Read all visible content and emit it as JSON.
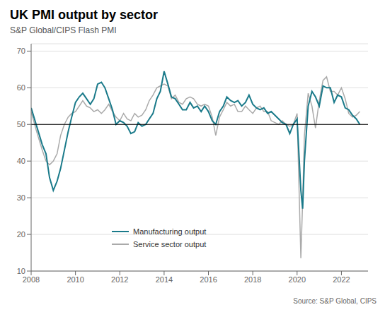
{
  "chart_data": {
    "type": "line",
    "title": "UK PMI output by sector",
    "subtitle": "S&P Global/CIPS Flash PMI",
    "annotations": [
      "Source: S&P Global, CIPS"
    ],
    "xlim": [
      2008.0,
      2023.2
    ],
    "xticks": [
      2008,
      2010,
      2012,
      2014,
      2016,
      2018,
      2020,
      2022
    ],
    "ylim": [
      10,
      72
    ],
    "yticks": [
      10,
      20,
      30,
      40,
      50,
      60,
      70
    ],
    "grid": "y",
    "legend": "lower left",
    "threshold": 50,
    "x": [
      2008.0,
      2008.25,
      2008.5,
      2008.67,
      2008.83,
      2009.0,
      2009.17,
      2009.33,
      2009.5,
      2009.67,
      2009.83,
      2010.0,
      2010.17,
      2010.33,
      2010.5,
      2010.67,
      2010.83,
      2011.0,
      2011.17,
      2011.33,
      2011.5,
      2011.67,
      2011.83,
      2012.0,
      2012.17,
      2012.33,
      2012.5,
      2012.67,
      2012.83,
      2013.0,
      2013.17,
      2013.33,
      2013.5,
      2013.67,
      2013.83,
      2014.0,
      2014.17,
      2014.33,
      2014.5,
      2014.67,
      2014.83,
      2015.0,
      2015.17,
      2015.33,
      2015.5,
      2015.67,
      2015.83,
      2016.0,
      2016.17,
      2016.33,
      2016.5,
      2016.67,
      2016.83,
      2017.0,
      2017.17,
      2017.33,
      2017.5,
      2017.67,
      2017.83,
      2018.0,
      2018.17,
      2018.33,
      2018.5,
      2018.67,
      2018.83,
      2019.0,
      2019.17,
      2019.33,
      2019.5,
      2019.67,
      2019.83,
      2020.0,
      2020.17,
      2020.25,
      2020.33,
      2020.5,
      2020.67,
      2020.83,
      2021.0,
      2021.17,
      2021.33,
      2021.5,
      2021.67,
      2021.83,
      2022.0,
      2022.17,
      2022.33,
      2022.5,
      2022.67,
      2022.83
    ],
    "series": [
      {
        "name": "Manufacturing output",
        "color": "#1a7a8a",
        "values": [
          54.5,
          49.5,
          44.5,
          42.0,
          35.5,
          32.0,
          34.5,
          38.0,
          43.0,
          48.0,
          52.0,
          56.0,
          57.5,
          58.5,
          57.0,
          55.5,
          57.0,
          61.0,
          61.5,
          60.0,
          57.0,
          54.0,
          50.0,
          51.0,
          50.5,
          49.5,
          47.5,
          48.0,
          50.5,
          49.5,
          50.0,
          51.5,
          53.0,
          57.0,
          59.0,
          64.5,
          61.0,
          57.5,
          57.0,
          55.5,
          54.0,
          54.0,
          56.0,
          54.5,
          55.0,
          53.5,
          55.0,
          53.5,
          51.0,
          50.0,
          53.5,
          55.0,
          57.5,
          56.5,
          56.0,
          56.5,
          55.0,
          56.0,
          58.0,
          55.5,
          54.5,
          54.0,
          54.5,
          53.0,
          53.5,
          52.5,
          51.5,
          50.5,
          50.0,
          47.5,
          50.0,
          51.5,
          32.0,
          27.0,
          40.0,
          55.0,
          59.0,
          57.5,
          55.0,
          60.5,
          60.0,
          60.0,
          56.0,
          58.0,
          57.5,
          54.5,
          54.0,
          52.5,
          51.5,
          50.0
        ]
      },
      {
        "name": "Service sector output",
        "color": "#aaaaaa",
        "values": [
          53.5,
          48.0,
          43.0,
          40.0,
          39.0,
          40.0,
          42.0,
          47.0,
          50.0,
          52.0,
          53.0,
          53.5,
          55.0,
          56.5,
          55.0,
          54.5,
          53.5,
          54.0,
          53.0,
          54.0,
          55.5,
          53.5,
          52.0,
          51.0,
          53.0,
          51.5,
          51.0,
          53.0,
          52.0,
          52.5,
          54.0,
          56.5,
          58.0,
          60.0,
          60.5,
          61.0,
          60.5,
          57.0,
          58.0,
          56.0,
          55.5,
          57.0,
          57.5,
          57.0,
          55.5,
          55.0,
          55.5,
          55.0,
          52.0,
          47.0,
          52.0,
          54.0,
          56.0,
          55.0,
          55.5,
          53.5,
          53.5,
          55.0,
          54.0,
          53.0,
          54.5,
          55.0,
          53.5,
          53.5,
          51.0,
          50.5,
          50.0,
          51.0,
          50.0,
          49.5,
          50.0,
          53.0,
          13.5,
          29.0,
          47.0,
          58.5,
          55.0,
          49.0,
          56.5,
          62.0,
          63.0,
          59.0,
          59.0,
          58.0,
          60.0,
          57.0,
          53.0,
          52.0,
          52.5,
          53.5
        ]
      }
    ]
  }
}
